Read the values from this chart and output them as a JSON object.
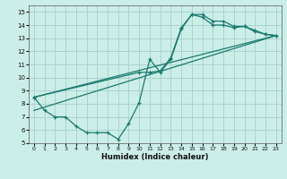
{
  "title": "",
  "xlabel": "Humidex (Indice chaleur)",
  "xlim": [
    -0.5,
    23.5
  ],
  "ylim": [
    5,
    15.5
  ],
  "yticks": [
    5,
    6,
    7,
    8,
    9,
    10,
    11,
    12,
    13,
    14,
    15
  ],
  "xticks": [
    0,
    1,
    2,
    3,
    4,
    5,
    6,
    7,
    8,
    9,
    10,
    11,
    12,
    13,
    14,
    15,
    16,
    17,
    18,
    19,
    20,
    21,
    22,
    23
  ],
  "background_color": "#cceee8",
  "grid_color": "#aad4ce",
  "line_color": "#1a7a6e",
  "line1_x": [
    0,
    1,
    2,
    3,
    4,
    5,
    6,
    7,
    8,
    9,
    10,
    11,
    12,
    13,
    14,
    15,
    16,
    17,
    18,
    19,
    20,
    21,
    22,
    23
  ],
  "line1_y": [
    8.5,
    7.5,
    7.0,
    7.0,
    6.3,
    5.8,
    5.8,
    5.8,
    5.3,
    6.5,
    8.1,
    11.4,
    10.4,
    11.4,
    13.7,
    14.8,
    14.8,
    14.3,
    14.3,
    13.9,
    13.9,
    13.5,
    13.3,
    13.2
  ],
  "line2_x": [
    0,
    10,
    11,
    12,
    13,
    14,
    15,
    16,
    17,
    18,
    19,
    20,
    21,
    22,
    23
  ],
  "line2_y": [
    8.5,
    10.4,
    10.4,
    10.5,
    11.5,
    13.8,
    14.8,
    14.6,
    14.0,
    14.0,
    13.8,
    13.9,
    13.6,
    13.3,
    13.2
  ],
  "line3_x": [
    0,
    23
  ],
  "line3_y": [
    8.5,
    13.2
  ],
  "line4_x": [
    0,
    23
  ],
  "line4_y": [
    7.5,
    13.2
  ],
  "marker_size": 3.5,
  "line_width": 0.9
}
